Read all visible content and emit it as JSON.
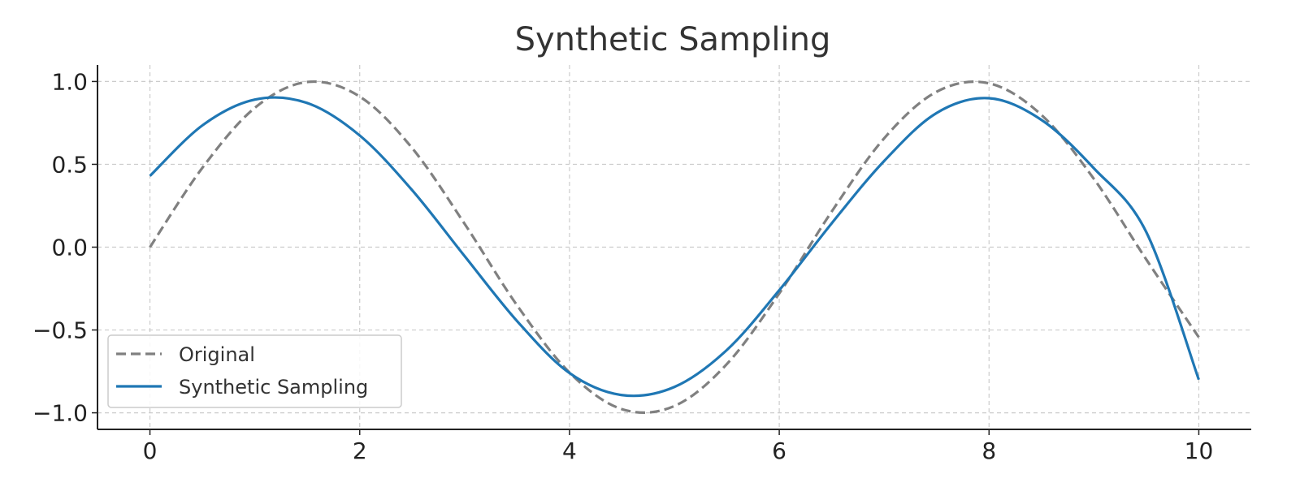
{
  "chart_data": {
    "type": "line",
    "title": "Synthetic Sampling",
    "xlabel": "",
    "ylabel": "",
    "xlim": [
      -0.5,
      10.5
    ],
    "ylim": [
      -1.1,
      1.1
    ],
    "x_ticks": [
      0,
      2,
      4,
      6,
      8,
      10
    ],
    "x_tick_labels": [
      "0",
      "2",
      "4",
      "6",
      "8",
      "10"
    ],
    "y_ticks": [
      -1.0,
      -0.5,
      0.0,
      0.5,
      1.0
    ],
    "y_tick_labels": [
      "−1.0",
      "−0.5",
      "0.0",
      "0.5",
      "1.0"
    ],
    "grid": true,
    "legend_position": "bottom-left",
    "x": [
      0,
      0.5,
      1,
      1.5,
      2,
      2.5,
      3,
      3.5,
      4,
      4.5,
      5,
      5.5,
      6,
      6.5,
      7,
      7.5,
      8,
      8.5,
      9,
      9.5,
      10
    ],
    "series": [
      {
        "name": "Original",
        "color": "#808080",
        "dash": "dashed",
        "values": [
          0.0,
          0.479,
          0.841,
          0.997,
          0.909,
          0.598,
          0.141,
          -0.351,
          -0.757,
          -0.978,
          -0.959,
          -0.706,
          -0.279,
          0.215,
          0.657,
          0.938,
          0.989,
          0.798,
          0.412,
          -0.075,
          -0.544
        ]
      },
      {
        "name": "Synthetic Sampling",
        "color": "#1f77b4",
        "dash": "solid",
        "values": [
          0.43,
          0.735,
          0.891,
          0.87,
          0.674,
          0.344,
          -0.054,
          -0.446,
          -0.76,
          -0.893,
          -0.844,
          -0.621,
          -0.26,
          0.144,
          0.52,
          0.81,
          0.899,
          0.768,
          0.476,
          0.09,
          -0.8
        ]
      }
    ]
  }
}
